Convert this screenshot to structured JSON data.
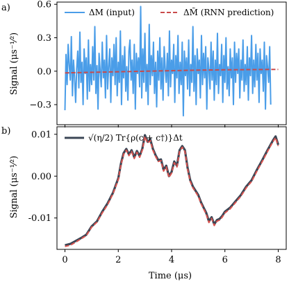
{
  "chart_data": [
    {
      "panel_label": "a)",
      "type": "line",
      "xlim": [
        -0.3,
        8.3
      ],
      "ylim": [
        -0.48,
        0.62
      ],
      "x_ticks": [
        0,
        2,
        4,
        6,
        8
      ],
      "y_ticks": [
        {
          "value": 0.6,
          "label": "0.6"
        },
        {
          "value": 0.3,
          "label": "0.3"
        },
        {
          "value": 0.0,
          "label": "0.0"
        },
        {
          "value": -0.3,
          "label": "−0.3"
        }
      ],
      "ylabel": "Signal (μs⁻¹⁄²)",
      "grid": false,
      "legend_position": "top",
      "series": [
        {
          "name": "ΔM (input)",
          "color": "#4a9de8",
          "style": "solid",
          "x_start": 0.0,
          "x_step": 0.04,
          "y": [
            -0.35,
            0.15,
            -0.12,
            0.24,
            0.05,
            -0.08,
            0.31,
            -0.22,
            0.1,
            -0.05,
            -0.28,
            0.02,
            0.18,
            -0.15,
            0.35,
            -0.1,
            0.08,
            -0.3,
            0.2,
            -0.02,
            0.12,
            -0.25,
            0.28,
            -0.18,
            0.06,
            -0.12,
            0.22,
            -0.08,
            0.4,
            -0.2,
            0.05,
            -0.34,
            0.16,
            0.0,
            -0.14,
            0.26,
            -0.06,
            0.1,
            -0.24,
            0.32,
            -0.16,
            0.04,
            0.2,
            -0.28,
            0.12,
            -0.04,
            0.24,
            -0.12,
            0.3,
            -0.22,
            0.08,
            -0.1,
            0.36,
            -0.3,
            0.14,
            -0.06,
            0.22,
            -0.18,
            0.04,
            -0.26,
            0.18,
            0.28,
            -0.08,
            0.1,
            -0.2,
            0.24,
            -0.34,
            0.16,
            -0.02,
            0.12,
            -0.14,
            0.58,
            -0.24,
            0.2,
            -0.1,
            0.34,
            -0.18,
            0.06,
            -0.3,
            0.42,
            -0.12,
            0.14,
            -0.04,
            0.26,
            -0.2,
            0.08,
            -0.32,
            0.18,
            -0.08,
            0.3,
            -0.16,
            0.12,
            -0.26,
            0.22,
            0.02,
            -0.1,
            0.16,
            -0.22,
            0.36,
            -0.14,
            0.1,
            -0.02,
            0.24,
            -0.28,
            0.14,
            -0.06,
            0.32,
            -0.2,
            0.08,
            -0.12,
            0.26,
            -0.4,
            0.18,
            -0.04,
            0.12,
            -0.16,
            0.28,
            -0.22,
            0.06,
            -0.1,
            0.4,
            -0.18,
            0.14,
            -0.3,
            0.2,
            -0.02,
            0.1,
            -0.24,
            0.32,
            -0.12,
            0.16,
            -0.06,
            0.22,
            -0.34,
            0.12,
            0.02,
            -0.16,
            0.26,
            -0.08,
            0.18,
            -0.26,
            0.1,
            -0.12,
            0.34,
            -0.2,
            0.06,
            -0.04,
            0.24,
            -0.28,
            0.14,
            -0.1,
            0.3,
            -0.16,
            0.04,
            -0.22,
            0.2,
            -0.06,
            0.12,
            -0.3,
            0.26,
            -0.1,
            0.16,
            -0.02,
            0.2,
            -0.24,
            0.1,
            -0.08,
            0.28,
            -0.18,
            0.06,
            -0.12,
            0.22,
            -0.26,
            0.12,
            -0.04,
            0.32,
            -0.2,
            0.1,
            -0.14,
            0.24,
            -0.08,
            0.16,
            -0.28,
            0.2,
            -0.02,
            0.1,
            -0.18,
            0.26,
            -0.34,
            0.14,
            0.04,
            -0.1,
            0.22,
            -0.3
          ]
        },
        {
          "name": "ΔM̃ (RNN prediction)",
          "color": "#c94a4a",
          "style": "dashed",
          "x": [
            0,
            1,
            2,
            3,
            4,
            5,
            6,
            7,
            8
          ],
          "y": [
            -0.015,
            -0.01,
            -0.005,
            0.0,
            0.005,
            0.01,
            0.012,
            0.014,
            0.016
          ]
        }
      ]
    },
    {
      "panel_label": "b)",
      "type": "line",
      "xlim": [
        -0.3,
        8.3
      ],
      "ylim": [
        -0.0175,
        0.0118
      ],
      "x_ticks": [
        0,
        2,
        4,
        6,
        8
      ],
      "y_ticks": [
        {
          "value": 0.01,
          "label": "0.01"
        },
        {
          "value": 0.0,
          "label": "0.00"
        },
        {
          "value": -0.01,
          "label": "-0.01"
        }
      ],
      "xlabel": "Time (μs)",
      "ylabel": "Signal (μs⁻¹⁄²)",
      "grid": false,
      "legend_position": "top-left",
      "series": [
        {
          "name": "√(η/2) Tr{ρ(c + c†)}Δt",
          "color": "#3b4655",
          "style": "solid",
          "x": [
            0.0,
            0.2,
            0.4,
            0.6,
            0.8,
            1.0,
            1.2,
            1.4,
            1.6,
            1.8,
            2.0,
            2.1,
            2.2,
            2.3,
            2.4,
            2.5,
            2.6,
            2.7,
            2.8,
            2.9,
            3.0,
            3.1,
            3.2,
            3.3,
            3.4,
            3.5,
            3.6,
            3.7,
            3.8,
            3.9,
            4.0,
            4.1,
            4.2,
            4.3,
            4.4,
            4.5,
            4.6,
            4.7,
            4.8,
            4.9,
            5.0,
            5.1,
            5.2,
            5.3,
            5.4,
            5.5,
            5.6,
            5.7,
            5.8,
            5.9,
            6.0,
            6.2,
            6.4,
            6.6,
            6.8,
            7.0,
            7.2,
            7.4,
            7.6,
            7.8,
            7.9,
            8.0
          ],
          "y": [
            -0.0165,
            -0.0162,
            -0.0155,
            -0.0148,
            -0.014,
            -0.012,
            -0.0108,
            -0.0085,
            -0.0065,
            -0.004,
            -0.0005,
            0.003,
            0.0055,
            0.0065,
            0.0052,
            0.0062,
            0.0045,
            0.006,
            0.0048,
            0.0065,
            0.0098,
            0.0082,
            0.0088,
            0.0065,
            0.005,
            0.0038,
            0.004,
            0.0015,
            0.0025,
            0.0,
            0.001,
            0.0035,
            0.0025,
            0.0062,
            0.0072,
            0.0062,
            0.002,
            -0.001,
            -0.0025,
            -0.0035,
            -0.0045,
            -0.0062,
            -0.0075,
            -0.0088,
            -0.0108,
            -0.0098,
            -0.0115,
            -0.0105,
            -0.0102,
            -0.0095,
            -0.0085,
            -0.0075,
            -0.006,
            -0.0045,
            -0.0025,
            -0.001,
            0.0015,
            0.0038,
            0.0062,
            0.0085,
            0.0095,
            0.0075
          ]
        },
        {
          "name": "",
          "color": "#d9534f",
          "style": "dashed",
          "x": [
            0.0,
            0.2,
            0.4,
            0.6,
            0.8,
            1.0,
            1.2,
            1.4,
            1.6,
            1.8,
            2.0,
            2.1,
            2.2,
            2.3,
            2.4,
            2.5,
            2.6,
            2.7,
            2.8,
            2.9,
            3.0,
            3.1,
            3.2,
            3.3,
            3.4,
            3.5,
            3.6,
            3.7,
            3.8,
            3.9,
            4.0,
            4.1,
            4.2,
            4.3,
            4.4,
            4.5,
            4.6,
            4.7,
            4.8,
            4.9,
            5.0,
            5.1,
            5.2,
            5.3,
            5.4,
            5.5,
            5.6,
            5.7,
            5.8,
            5.9,
            6.0,
            6.2,
            6.4,
            6.6,
            6.8,
            7.0,
            7.2,
            7.4,
            7.6,
            7.8,
            7.9,
            8.0
          ],
          "y": [
            -0.0168,
            -0.0165,
            -0.0158,
            -0.015,
            -0.0142,
            -0.0122,
            -0.011,
            -0.0088,
            -0.0068,
            -0.0042,
            -0.0008,
            0.0027,
            0.0052,
            0.0062,
            0.0049,
            0.0059,
            0.0042,
            0.0057,
            0.0045,
            0.0062,
            0.0095,
            0.0079,
            0.0085,
            0.0062,
            0.0047,
            0.0035,
            0.0037,
            0.0012,
            0.0022,
            -0.0003,
            0.0007,
            0.0032,
            0.0022,
            0.0059,
            0.0069,
            0.0059,
            0.0017,
            -0.0013,
            -0.0028,
            -0.0038,
            -0.0048,
            -0.0065,
            -0.0078,
            -0.0091,
            -0.0111,
            -0.0101,
            -0.0118,
            -0.0108,
            -0.0105,
            -0.0098,
            -0.0088,
            -0.0078,
            -0.0063,
            -0.0048,
            -0.0028,
            -0.0013,
            0.0012,
            0.0035,
            0.0059,
            0.0082,
            0.0092,
            0.0072
          ]
        }
      ]
    }
  ]
}
